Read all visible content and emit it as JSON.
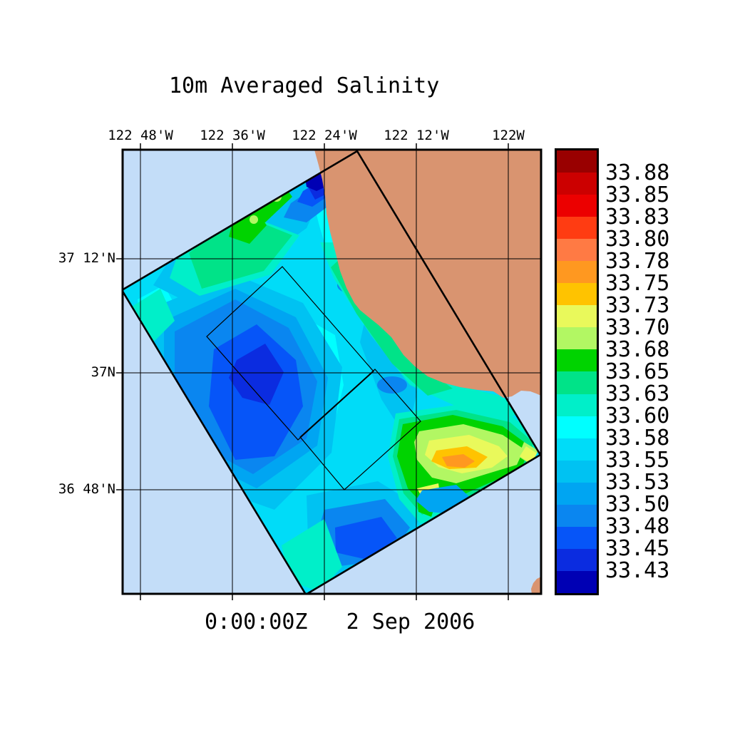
{
  "title": "10m Averaged Salinity",
  "footer_timestamp": "0:00:00Z   2 Sep 2006",
  "map": {
    "top_axis_labels": [
      "122 48'W",
      "122 36'W",
      "122 24'W",
      "122 12'W",
      "122W"
    ],
    "left_axis_labels": [
      "37 12'N",
      "37N",
      "36 48'N"
    ]
  },
  "colorbar": {
    "labels": [
      "33.88",
      "33.85",
      "33.83",
      "33.80",
      "33.78",
      "33.75",
      "33.73",
      "33.70",
      "33.68",
      "33.65",
      "33.63",
      "33.60",
      "33.58",
      "33.55",
      "33.53",
      "33.50",
      "33.48",
      "33.45",
      "33.43"
    ],
    "colors_top_to_bottom": [
      "#990000",
      "#CC0000",
      "#EC0000",
      "#FF3C12",
      "#FF7A44",
      "#FF9820",
      "#FFC300",
      "#E9F95B",
      "#B2F763",
      "#00D300",
      "#00E388",
      "#00EFC9",
      "#00FFFF",
      "#00DCF8",
      "#00C2F2",
      "#00A5F2",
      "#0A86F0",
      "#0655F8",
      "#0B2CE0",
      "#0000B4"
    ]
  },
  "colors": {
    "page_background": "#FFFFFF",
    "ocean_background": "#C3DDF8",
    "land": "#D99470",
    "line": "#000000"
  },
  "chart_data": {
    "type": "heatmap",
    "title": "10m Averaged Salinity",
    "time_label": "0:00:00Z   2 Sep 2006",
    "x_tick_labels": [
      "122 48'W",
      "122 36'W",
      "122 24'W",
      "122 12'W",
      "122W"
    ],
    "y_tick_labels": [
      "37 12'N",
      "37N",
      "36 48'N"
    ],
    "colorbar_levels_low_to_high": [
      33.43,
      33.45,
      33.48,
      33.5,
      33.53,
      33.55,
      33.58,
      33.6,
      33.63,
      33.65,
      33.68,
      33.7,
      33.73,
      33.75,
      33.78,
      33.8,
      33.83,
      33.85,
      33.88
    ],
    "colorbar_colors_low_to_high": [
      "#0000B4",
      "#0B2CE0",
      "#0655F8",
      "#0A86F0",
      "#00A5F2",
      "#00C2F2",
      "#00DCF8",
      "#00FFFF",
      "#00EFC9",
      "#00E388",
      "#00D300",
      "#B2F763",
      "#E9F95B",
      "#FFC300",
      "#FF9820",
      "#FF7A44",
      "#FF3C12",
      "#EC0000",
      "#CC0000",
      "#990000"
    ],
    "legend_position": "right",
    "grid": true,
    "features": [
      "rotated rectangular ocean-model domain filled with salinity field over light-blue background",
      "two thin-outline nested subdomain rectangles inside the main domain",
      "tan coastal land mass (central California coast) occupying the upper right",
      "most of the domain holds salinity 33.43-33.63 (blues and cyans)",
      "high-salinity patch 33.65-33.78 (greens, yellows, orange core) in Monterey Bay near 122W, 36 50'N",
      "lowest salinity (below 33.43, navy) at the northern domain corner near the coast"
    ]
  }
}
